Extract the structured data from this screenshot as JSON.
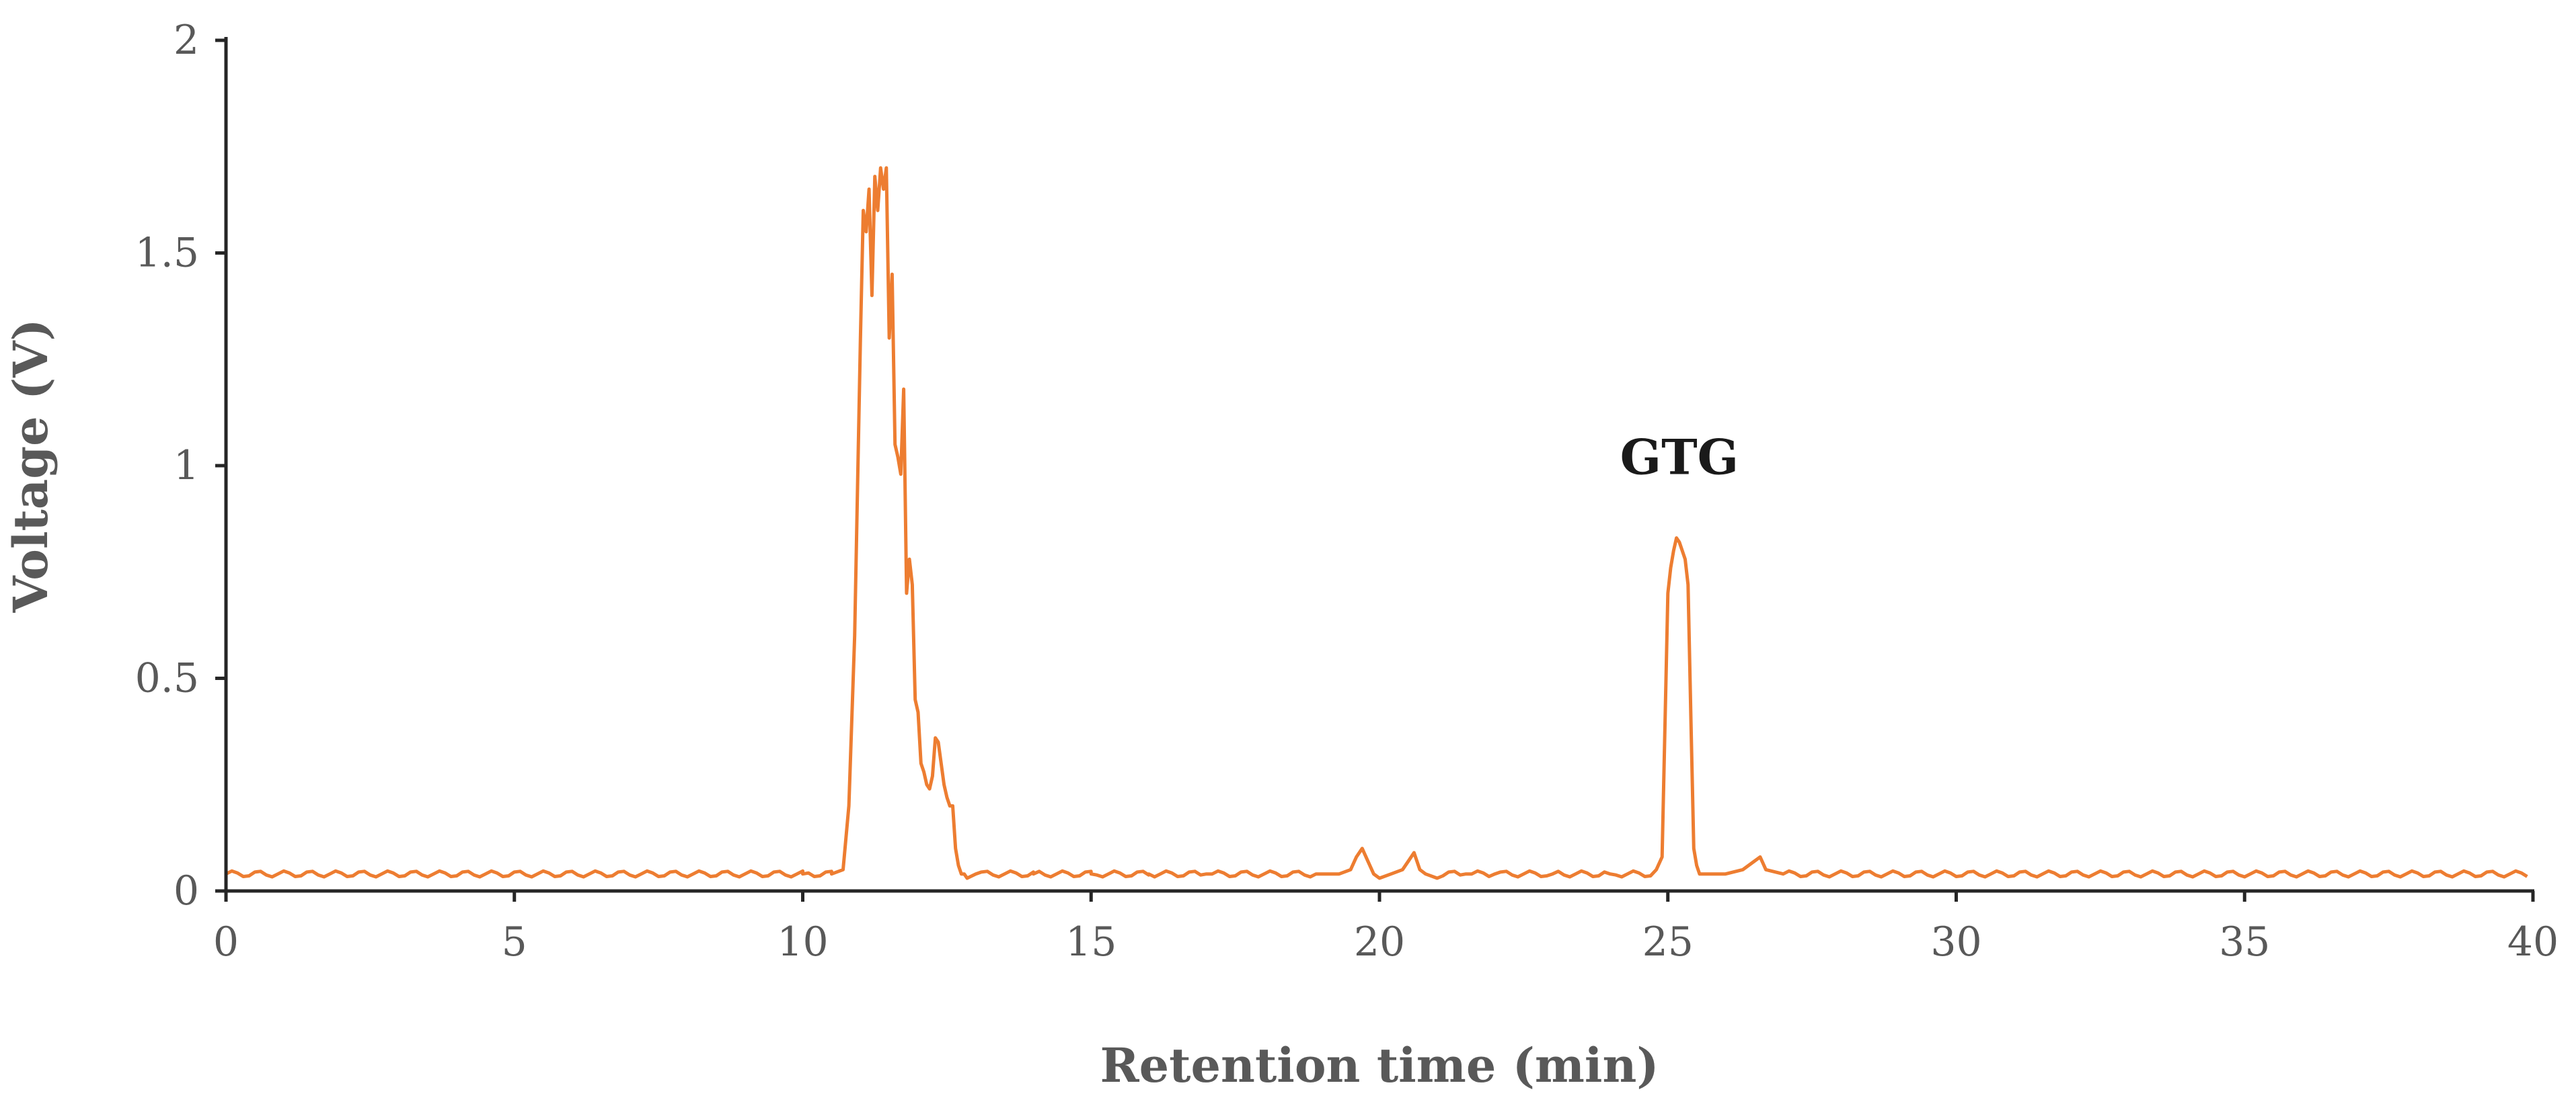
{
  "chart_data": {
    "type": "line",
    "title": "",
    "xlabel": "Retention time (min)",
    "ylabel": "Voltage (V)",
    "xlim": [
      0,
      40
    ],
    "ylim": [
      0,
      2
    ],
    "xticks": [
      0,
      5,
      10,
      15,
      20,
      25,
      30,
      35,
      40
    ],
    "yticks": [
      0,
      0.5,
      1,
      1.5,
      2
    ],
    "ytick_labels": [
      "0",
      "0.5",
      "1",
      "1.5",
      "2"
    ],
    "grid": false,
    "legend": "none",
    "line_color": "#ED7D31",
    "baseline": 0.04,
    "series": [
      {
        "x": [
          10.0,
          10.5,
          10.7,
          10.8,
          10.9,
          11.0,
          11.05,
          11.1,
          11.15,
          11.2,
          11.25,
          11.3,
          11.35,
          11.4,
          11.45,
          11.5,
          11.55,
          11.6,
          11.65,
          11.7,
          11.75,
          11.8,
          11.85,
          11.9,
          11.95,
          12.0,
          12.05,
          12.1,
          12.15,
          12.2,
          12.25,
          12.3,
          12.35,
          12.4,
          12.45,
          12.5,
          12.55,
          12.6,
          12.65,
          12.7,
          12.75,
          12.8,
          12.85,
          13.0,
          13.5,
          14.0,
          15.0,
          16.0,
          17.0,
          18.0,
          19.0,
          19.3,
          19.5,
          19.6,
          19.7,
          19.8,
          19.9,
          20.0,
          20.2,
          20.4,
          20.5,
          20.6,
          20.7,
          20.8,
          21.0,
          21.5,
          22.0,
          23.0,
          24.0,
          24.8,
          24.9,
          25.0,
          25.05,
          25.1,
          25.15,
          25.2,
          25.3,
          25.35,
          25.4,
          25.45,
          25.5,
          25.55,
          25.6,
          25.7,
          26.0,
          26.3,
          26.5,
          26.6,
          26.7,
          27.0
        ],
        "y": [
          0.04,
          0.04,
          0.05,
          0.2,
          0.6,
          1.3,
          1.6,
          1.55,
          1.65,
          1.4,
          1.68,
          1.6,
          1.7,
          1.65,
          1.7,
          1.3,
          1.45,
          1.05,
          1.02,
          0.98,
          1.18,
          0.7,
          0.78,
          0.72,
          0.45,
          0.42,
          0.3,
          0.28,
          0.25,
          0.24,
          0.27,
          0.36,
          0.35,
          0.3,
          0.25,
          0.22,
          0.2,
          0.2,
          0.1,
          0.06,
          0.04,
          0.04,
          0.03,
          0.04,
          0.04,
          0.04,
          0.04,
          0.04,
          0.04,
          0.04,
          0.04,
          0.04,
          0.05,
          0.08,
          0.1,
          0.07,
          0.04,
          0.03,
          0.04,
          0.05,
          0.07,
          0.09,
          0.05,
          0.04,
          0.03,
          0.04,
          0.04,
          0.04,
          0.04,
          0.05,
          0.08,
          0.7,
          0.76,
          0.8,
          0.83,
          0.82,
          0.78,
          0.72,
          0.4,
          0.1,
          0.06,
          0.04,
          0.04,
          0.04,
          0.04,
          0.05,
          0.07,
          0.08,
          0.05,
          0.04
        ]
      }
    ],
    "annotations": [
      {
        "text": "GTG",
        "x": 25.2,
        "y": 0.98
      }
    ]
  }
}
